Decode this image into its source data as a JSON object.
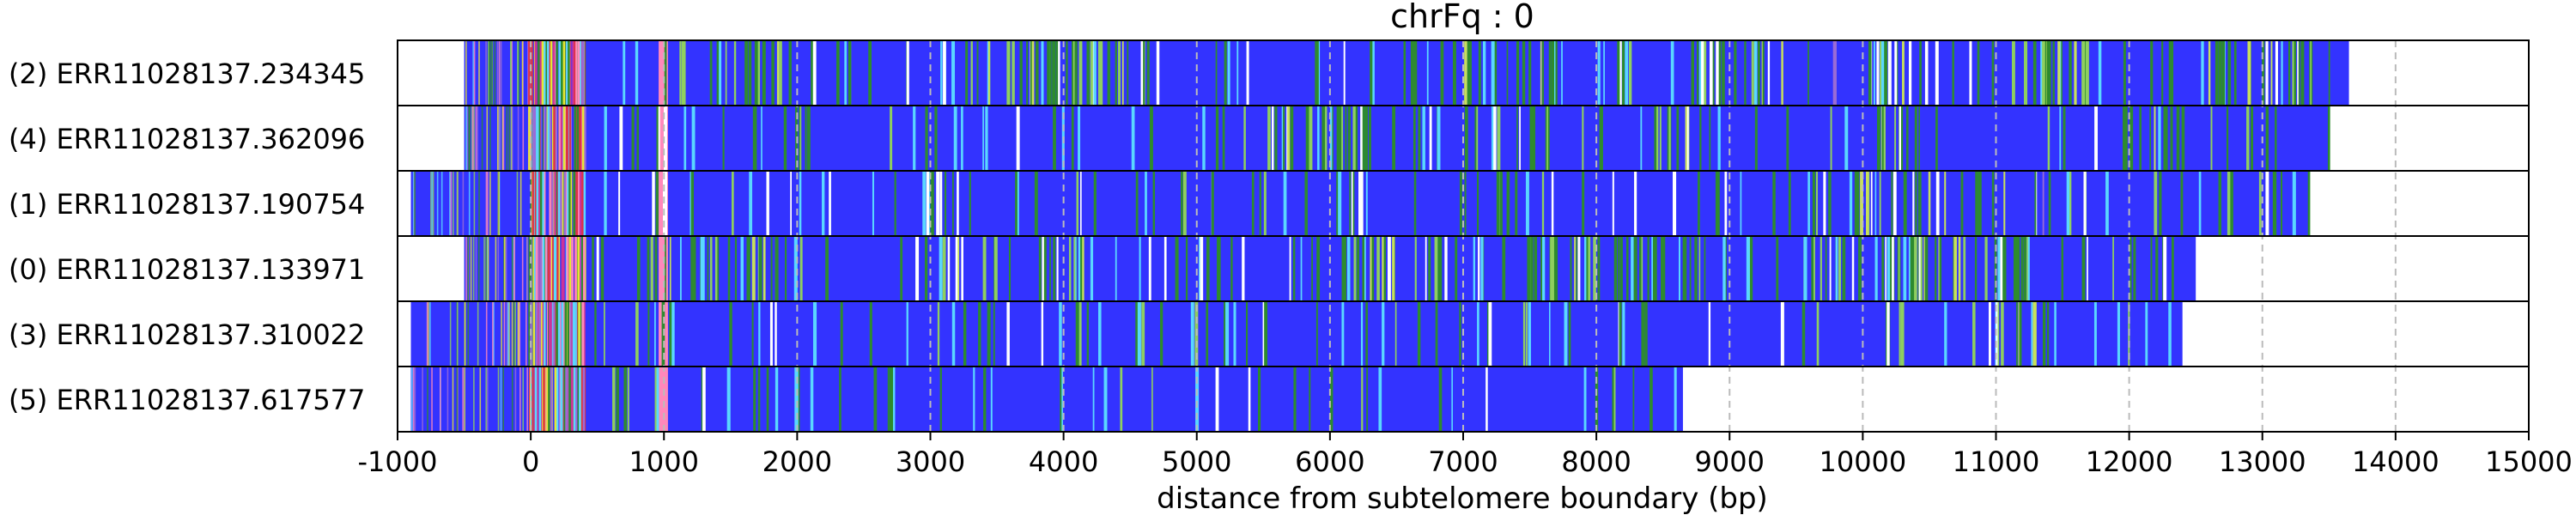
{
  "chart_data": {
    "type": "heatmap",
    "title": "chrFq : 0",
    "xlabel": "distance from subtelomere boundary (bp)",
    "ylabel": "",
    "xlim": [
      -1000,
      15000
    ],
    "x_ticks": [
      "-1000",
      "0",
      "1000",
      "2000",
      "3000",
      "4000",
      "5000",
      "6000",
      "7000",
      "8000",
      "9000",
      "10000",
      "11000",
      "12000",
      "13000",
      "14000",
      "15000"
    ],
    "grid": "vertical dashed gridlines at each tick",
    "colors": {
      "background": "#3333ff",
      "green": "#2e8b2e",
      "lightgreen": "#8fcf5f",
      "yellowgreen": "#c8e05a",
      "cyan": "#5ad7ff",
      "white": "#ffffff",
      "pink": "#ff88bb",
      "magenta": "#cc3399",
      "red": "#dd3344",
      "yellow": "#e6e633",
      "violet": "#9a6bd6"
    },
    "reads": [
      {
        "label": "(2) ERR11028137.234345",
        "start": -500,
        "end": 13650,
        "green_regions": [
          [
            1100,
            2000
          ],
          [
            3300,
            4500
          ],
          [
            4400,
            4700
          ],
          [
            7000,
            7700
          ],
          [
            8700,
            9400
          ],
          [
            10000,
            10500
          ],
          [
            11200,
            11700
          ],
          [
            12500,
            12900
          ],
          [
            13000,
            13600
          ]
        ],
        "light_regions": [
          [
            3000,
            4300
          ],
          [
            9700,
            9900
          ]
        ],
        "seed": 1
      },
      {
        "label": "(4) ERR11028137.362096",
        "start": -500,
        "end": 13500,
        "green_regions": [
          [
            1800,
            2100
          ],
          [
            5500,
            6500
          ],
          [
            7000,
            7700
          ],
          [
            8300,
            8700
          ],
          [
            10100,
            10500
          ],
          [
            11900,
            12400
          ]
        ],
        "light_regions": [],
        "seed": 2
      },
      {
        "label": "(1) ERR11028137.190754",
        "start": -900,
        "end": 13350,
        "green_regions": [
          [
            2900,
            3200
          ],
          [
            6000,
            6200
          ],
          [
            7000,
            7300
          ],
          [
            9900,
            10700
          ],
          [
            10700,
            11200
          ],
          [
            13000,
            13200
          ]
        ],
        "light_regions": [
          [
            10000,
            11400
          ]
        ],
        "seed": 3
      },
      {
        "label": "(0) ERR11028137.133971",
        "start": -500,
        "end": 12500,
        "green_regions": [
          [
            1000,
            2000
          ],
          [
            2900,
            3600
          ],
          [
            3800,
            4500
          ],
          [
            4900,
            5400
          ],
          [
            5800,
            7000
          ],
          [
            7400,
            8000
          ],
          [
            8000,
            8700
          ],
          [
            9600,
            10000
          ],
          [
            10200,
            11300
          ],
          [
            11600,
            12400
          ]
        ],
        "light_regions": [
          [
            10300,
            10900
          ]
        ],
        "seed": 4
      },
      {
        "label": "(3) ERR11028137.310022",
        "start": -900,
        "end": 12400,
        "green_regions": [
          [
            10100,
            10300
          ],
          [
            11000,
            11300
          ]
        ],
        "light_regions": [],
        "seed": 5
      },
      {
        "label": "(5) ERR11028137.617577",
        "start": -900,
        "end": 8650,
        "green_regions": [],
        "light_regions": [],
        "seed": 6
      }
    ]
  }
}
